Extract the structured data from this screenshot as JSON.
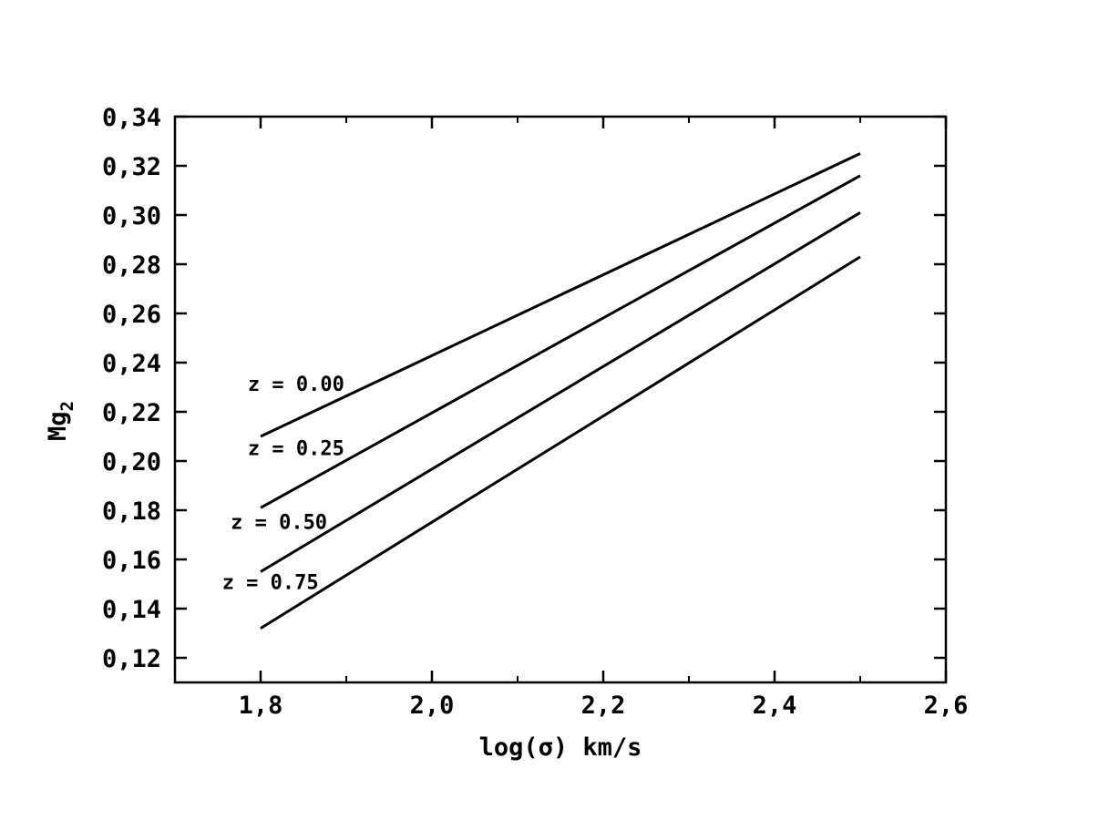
{
  "chart_data": {
    "type": "line",
    "xlabel": "log(σ)   km/s",
    "ylabel": "Mg",
    "ylabel_subscript": "2",
    "xlim": [
      1.7,
      2.6
    ],
    "ylim": [
      0.11,
      0.34
    ],
    "xticks": [
      1.8,
      2.0,
      2.2,
      2.4,
      2.6
    ],
    "xtick_labels": [
      "1,8",
      "2,0",
      "2,2",
      "2,4",
      "2,6"
    ],
    "yticks": [
      0.12,
      0.14,
      0.16,
      0.18,
      0.2,
      0.22,
      0.24,
      0.26,
      0.28,
      0.3,
      0.32,
      0.34
    ],
    "ytick_labels": [
      "0,12",
      "0,14",
      "0,16",
      "0,18",
      "0,20",
      "0,22",
      "0,24",
      "0,26",
      "0,28",
      "0,30",
      "0,32",
      "0,34"
    ],
    "grid": false,
    "series": [
      {
        "x": [
          1.8,
          2.5
        ],
        "y": [
          0.21,
          0.325
        ],
        "annotation": "z = 0.00",
        "annotation_at": [
          1.785,
          0.2285
        ]
      },
      {
        "x": [
          1.8,
          2.5
        ],
        "y": [
          0.181,
          0.316
        ],
        "annotation": "z = 0.25",
        "annotation_at": [
          1.785,
          0.2025
        ]
      },
      {
        "x": [
          1.8,
          2.5
        ],
        "y": [
          0.155,
          0.301
        ],
        "annotation": "z = 0.50",
        "annotation_at": [
          1.765,
          0.1725
        ]
      },
      {
        "x": [
          1.8,
          2.5
        ],
        "y": [
          0.132,
          0.283
        ],
        "annotation": "z = 0.75",
        "annotation_at": [
          1.755,
          0.148
        ]
      }
    ],
    "line_color": "#000000"
  }
}
